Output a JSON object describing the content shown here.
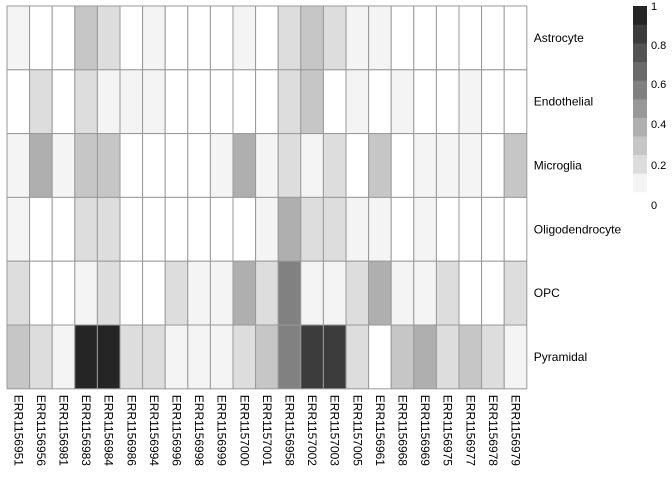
{
  "chart_data": {
    "type": "heatmap",
    "title": "",
    "xlabel": "",
    "ylabel": "",
    "rows": [
      "Astrocyte",
      "Endothelial",
      "Microglia",
      "Oligodendrocyte",
      "OPC",
      "Pyramidal"
    ],
    "columns": [
      "ERR1156951",
      "ERR1156956",
      "ERR1156981",
      "ERR1156983",
      "ERR1156984",
      "ERR1156986",
      "ERR1156994",
      "ERR1156996",
      "ERR1156998",
      "ERR1156999",
      "ERR1157000",
      "ERR1157001",
      "ERR1156958",
      "ERR1157002",
      "ERR1157003",
      "ERR1157005",
      "ERR1156961",
      "ERR1156968",
      "ERR1156969",
      "ERR1156975",
      "ERR1156977",
      "ERR1156978",
      "ERR1156979"
    ],
    "values": [
      [
        0.05,
        0.0,
        0.0,
        0.25,
        0.1,
        0.0,
        0.05,
        0.0,
        0.0,
        0.0,
        0.05,
        0.0,
        0.15,
        0.25,
        0.15,
        0.05,
        0.05,
        0.0,
        0.0,
        0.0,
        0.0,
        0.0,
        0.0
      ],
      [
        0.0,
        0.15,
        0.0,
        0.15,
        0.05,
        0.05,
        0.05,
        0.0,
        0.0,
        0.0,
        0.0,
        0.0,
        0.1,
        0.25,
        0.0,
        0.05,
        0.0,
        0.05,
        0.0,
        0.0,
        0.05,
        0.0,
        0.0
      ],
      [
        0.05,
        0.35,
        0.05,
        0.25,
        0.25,
        0.0,
        0.0,
        0.0,
        0.0,
        0.05,
        0.35,
        0.05,
        0.15,
        0.05,
        0.1,
        0.0,
        0.25,
        0.0,
        0.05,
        0.05,
        0.05,
        0.0,
        0.25
      ],
      [
        0.05,
        0.0,
        0.0,
        0.15,
        0.15,
        0.0,
        0.0,
        0.0,
        0.0,
        0.0,
        0.0,
        0.05,
        0.35,
        0.15,
        0.15,
        0.05,
        0.05,
        0.0,
        0.05,
        0.0,
        0.0,
        0.0,
        0.0
      ],
      [
        0.15,
        0.0,
        0.0,
        0.05,
        0.15,
        0.0,
        0.0,
        0.15,
        0.05,
        0.05,
        0.35,
        0.15,
        0.55,
        0.05,
        0.05,
        0.15,
        0.35,
        0.05,
        0.05,
        0.15,
        0.0,
        0.0,
        0.15
      ],
      [
        0.25,
        0.15,
        0.05,
        0.95,
        0.95,
        0.15,
        0.15,
        0.05,
        0.05,
        0.05,
        0.15,
        0.25,
        0.55,
        0.85,
        0.85,
        0.15,
        0.0,
        0.25,
        0.35,
        0.15,
        0.25,
        0.15,
        0.05
      ]
    ],
    "colorbar": {
      "min": 0,
      "max": 1,
      "steps": 10,
      "ticks": [
        "1",
        "0.8",
        "0.6",
        "0.4",
        "0.2",
        "0"
      ],
      "low_color": "#ffffff",
      "high_color": "#1a1a1a"
    },
    "grid_color": "#999999"
  }
}
